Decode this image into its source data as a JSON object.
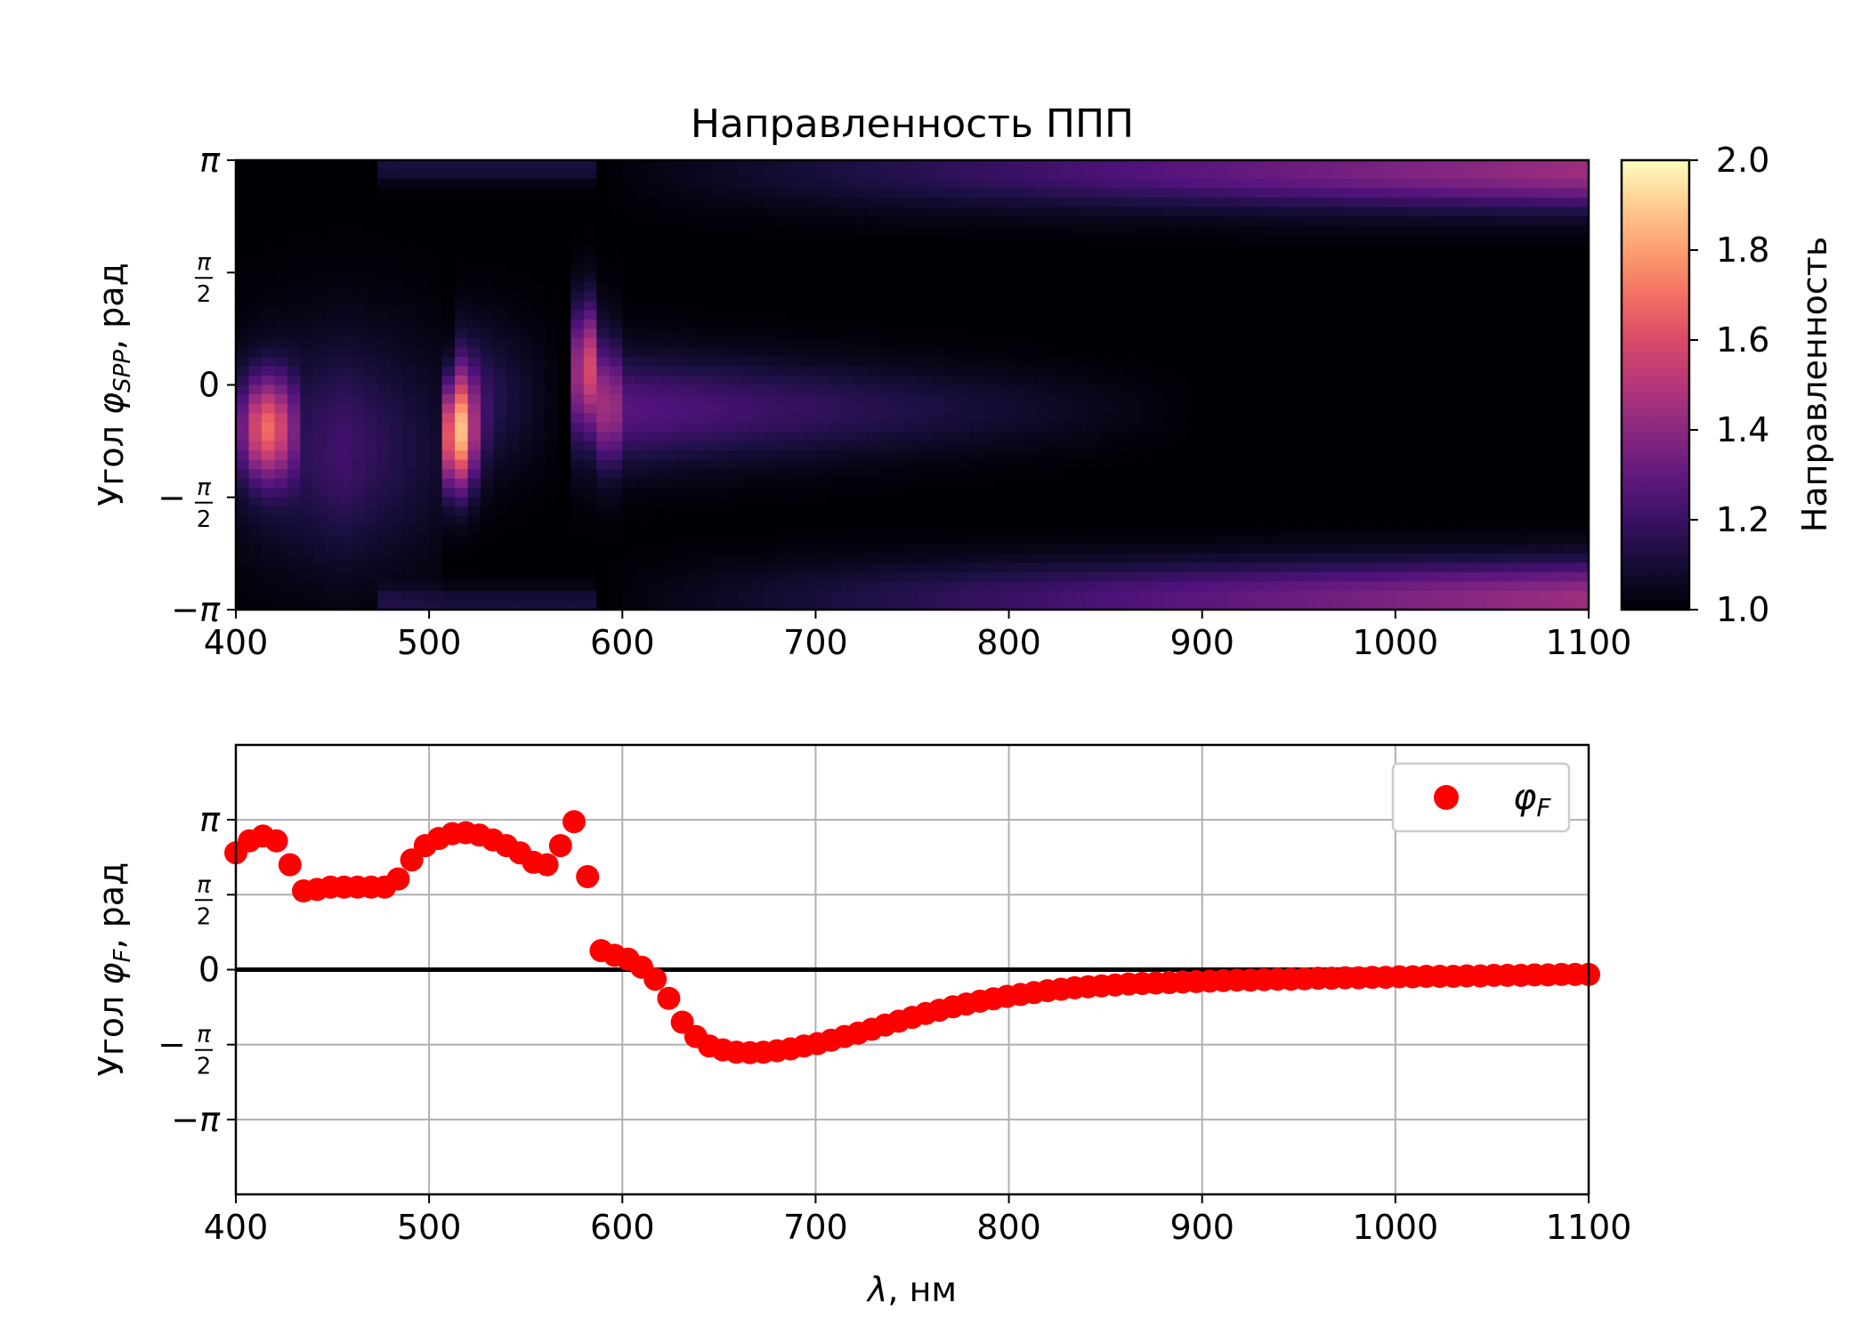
{
  "chart_data": [
    {
      "type": "heatmap",
      "title": "Направленность ППП",
      "xlabel": "",
      "ylabel": "Угол φSPP, рад",
      "xlim": [
        400,
        1100
      ],
      "ylim": [
        -3.14159,
        3.14159
      ],
      "x_ticks": [
        {
          "value": 400,
          "label": "400"
        },
        {
          "value": 500,
          "label": "500"
        },
        {
          "value": 600,
          "label": "600"
        },
        {
          "value": 700,
          "label": "700"
        },
        {
          "value": 800,
          "label": "800"
        },
        {
          "value": 900,
          "label": "900"
        },
        {
          "value": 1000,
          "label": "1000"
        },
        {
          "value": 1100,
          "label": "1100"
        }
      ],
      "y_ticks": [
        {
          "value": 3.14159,
          "label": "π"
        },
        {
          "value": 1.5708,
          "label": "π/2"
        },
        {
          "value": 0,
          "label": "0"
        },
        {
          "value": -1.5708,
          "label": "−π/2"
        },
        {
          "value": -3.14159,
          "label": "−π"
        }
      ],
      "colorbar": {
        "label": "Направленность",
        "range": [
          1.0,
          2.0
        ],
        "colormap": "magma",
        "ticks": [
          {
            "value": 1.0,
            "label": "1.0"
          },
          {
            "value": 1.2,
            "label": "1.2"
          },
          {
            "value": 1.4,
            "label": "1.4"
          },
          {
            "value": 1.6,
            "label": "1.6"
          },
          {
            "value": 1.8,
            "label": "1.8"
          },
          {
            "value": 2.0,
            "label": "2.0"
          }
        ]
      },
      "features": [
        {
          "x_range": [
            400,
            425
          ],
          "peak_angle": -0.7,
          "peak_value": 1.6,
          "description": "bright lobe"
        },
        {
          "x_range": [
            510,
            520
          ],
          "peak_angle": -0.9,
          "peak_value": 1.75,
          "description": "brightest lobe"
        },
        {
          "x_range": [
            575,
            590
          ],
          "peak_angle": 0.2,
          "peak_value": 1.55,
          "description": "narrow lobe"
        },
        {
          "x_range": [
            590,
            850
          ],
          "peak_angle": -0.4,
          "peak_value": 1.25,
          "description": "fading central band"
        },
        {
          "x_range": [
            600,
            1100
          ],
          "peak_angle": 3.0,
          "peak_value": 1.45,
          "description": "upper band rising toward 1100"
        },
        {
          "x_range": [
            600,
            1100
          ],
          "peak_angle": -3.0,
          "peak_value": 1.45,
          "description": "lower band rising toward 1100"
        }
      ]
    },
    {
      "type": "scatter",
      "title": "",
      "xlabel": "λ, нм",
      "ylabel": "Угол φF, рад",
      "xlim": [
        400,
        1100
      ],
      "ylim": [
        -4.71,
        4.71
      ],
      "grid": true,
      "legend": {
        "location": "top-right",
        "entries": [
          {
            "label": "φF",
            "color": "#ff0000"
          }
        ]
      },
      "hline": {
        "y": 0,
        "color": "#000000"
      },
      "x_ticks": [
        {
          "value": 400,
          "label": "400"
        },
        {
          "value": 500,
          "label": "500"
        },
        {
          "value": 600,
          "label": "600"
        },
        {
          "value": 700,
          "label": "700"
        },
        {
          "value": 800,
          "label": "800"
        },
        {
          "value": 900,
          "label": "900"
        },
        {
          "value": 1000,
          "label": "1000"
        },
        {
          "value": 1100,
          "label": "1100"
        }
      ],
      "y_ticks": [
        {
          "value": 3.14159,
          "label": "π"
        },
        {
          "value": 1.5708,
          "label": "π/2"
        },
        {
          "value": 0,
          "label": "0"
        },
        {
          "value": -1.5708,
          "label": "−π/2"
        },
        {
          "value": -3.14159,
          "label": "−π"
        }
      ],
      "series": [
        {
          "name": "φF",
          "color": "#ff0000",
          "points": [
            [
              400,
              2.45
            ],
            [
              407,
              2.7
            ],
            [
              414,
              2.8
            ],
            [
              421,
              2.7
            ],
            [
              428,
              2.2
            ],
            [
              435,
              1.65
            ],
            [
              442,
              1.68
            ],
            [
              449,
              1.73
            ],
            [
              456,
              1.73
            ],
            [
              463,
              1.73
            ],
            [
              470,
              1.73
            ],
            [
              477,
              1.73
            ],
            [
              484,
              1.9
            ],
            [
              491,
              2.3
            ],
            [
              498,
              2.6
            ],
            [
              505,
              2.75
            ],
            [
              512,
              2.85
            ],
            [
              519,
              2.87
            ],
            [
              526,
              2.82
            ],
            [
              533,
              2.72
            ],
            [
              540,
              2.6
            ],
            [
              547,
              2.45
            ],
            [
              554,
              2.25
            ],
            [
              561,
              2.2
            ],
            [
              568,
              2.6
            ],
            [
              575,
              3.1
            ],
            [
              582,
              1.95
            ],
            [
              589,
              0.4
            ],
            [
              596,
              0.3
            ],
            [
              603,
              0.22
            ],
            [
              610,
              0.05
            ],
            [
              617,
              -0.2
            ],
            [
              624,
              -0.6
            ],
            [
              631,
              -1.1
            ],
            [
              638,
              -1.4
            ],
            [
              645,
              -1.6
            ],
            [
              652,
              -1.68
            ],
            [
              659,
              -1.73
            ],
            [
              666,
              -1.74
            ],
            [
              673,
              -1.73
            ],
            [
              680,
              -1.7
            ],
            [
              687,
              -1.66
            ],
            [
              694,
              -1.6
            ],
            [
              701,
              -1.55
            ],
            [
              708,
              -1.48
            ],
            [
              715,
              -1.4
            ],
            [
              722,
              -1.33
            ],
            [
              729,
              -1.25
            ],
            [
              736,
              -1.16
            ],
            [
              743,
              -1.08
            ],
            [
              750,
              -1.0
            ],
            [
              757,
              -0.92
            ],
            [
              764,
              -0.85
            ],
            [
              771,
              -0.78
            ],
            [
              778,
              -0.72
            ],
            [
              785,
              -0.66
            ],
            [
              792,
              -0.61
            ],
            [
              799,
              -0.56
            ],
            [
              806,
              -0.52
            ],
            [
              813,
              -0.48
            ],
            [
              820,
              -0.44
            ],
            [
              827,
              -0.41
            ],
            [
              834,
              -0.38
            ],
            [
              841,
              -0.36
            ],
            [
              848,
              -0.34
            ],
            [
              855,
              -0.32
            ],
            [
              862,
              -0.3
            ],
            [
              869,
              -0.29
            ],
            [
              876,
              -0.28
            ],
            [
              883,
              -0.27
            ],
            [
              890,
              -0.26
            ],
            [
              897,
              -0.25
            ],
            [
              904,
              -0.24
            ],
            [
              911,
              -0.23
            ],
            [
              918,
              -0.22
            ],
            [
              925,
              -0.22
            ],
            [
              932,
              -0.21
            ],
            [
              939,
              -0.2
            ],
            [
              946,
              -0.2
            ],
            [
              953,
              -0.19
            ],
            [
              960,
              -0.18
            ],
            [
              967,
              -0.18
            ],
            [
              974,
              -0.17
            ],
            [
              981,
              -0.17
            ],
            [
              988,
              -0.16
            ],
            [
              995,
              -0.16
            ],
            [
              1002,
              -0.15
            ],
            [
              1009,
              -0.15
            ],
            [
              1016,
              -0.14
            ],
            [
              1023,
              -0.14
            ],
            [
              1030,
              -0.14
            ],
            [
              1037,
              -0.13
            ],
            [
              1044,
              -0.13
            ],
            [
              1051,
              -0.12
            ],
            [
              1058,
              -0.12
            ],
            [
              1065,
              -0.12
            ],
            [
              1072,
              -0.11
            ],
            [
              1079,
              -0.11
            ],
            [
              1086,
              -0.1
            ],
            [
              1093,
              -0.1
            ],
            [
              1100,
              -0.1
            ]
          ]
        }
      ]
    }
  ]
}
